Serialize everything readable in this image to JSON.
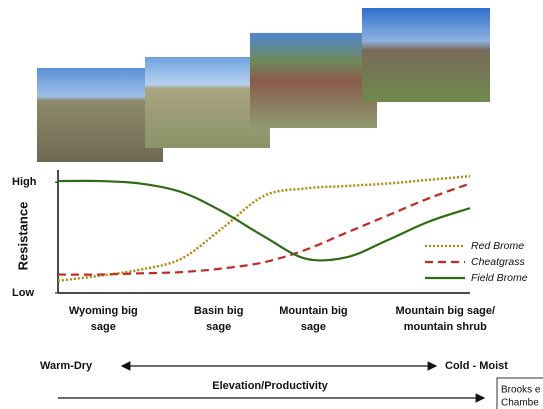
{
  "chart_data": {
    "type": "line",
    "ylabel": "Resistance",
    "ylim": [
      0,
      100
    ],
    "yticks": [
      {
        "value": 90,
        "label": "High"
      },
      {
        "value": 0,
        "label": "Low"
      }
    ],
    "xlim": [
      0,
      100
    ],
    "xticks": [
      {
        "value": 11,
        "label": "Wyoming big sage"
      },
      {
        "value": 39,
        "label": "Basin big sage"
      },
      {
        "value": 62,
        "label": "Mountain big sage"
      },
      {
        "value": 94,
        "label": "Mountain big sage/ mountain shrub"
      }
    ],
    "x": [
      0,
      10,
      20,
      30,
      40,
      50,
      60,
      70,
      80,
      90,
      100
    ],
    "series": [
      {
        "name": "Red Brome",
        "color": "#b8860b",
        "style": "dotted",
        "values": [
          10,
          14,
          19,
          28,
          53,
          79,
          85,
          87,
          89,
          92,
          95
        ]
      },
      {
        "name": "Cheatgrass",
        "color": "#c8281e",
        "style": "dashed",
        "values": [
          15,
          15,
          16,
          17,
          20,
          25,
          35,
          49,
          63,
          77,
          89
        ]
      },
      {
        "name": "Field Brome",
        "color": "#2e6b12",
        "style": "solid",
        "values": [
          91,
          91,
          89,
          82,
          66,
          46,
          28,
          29,
          43,
          58,
          69
        ]
      }
    ],
    "legend": "right",
    "annotations": [
      "Warm-Dry",
      "Cold - Moist",
      "Elevation/Productivity"
    ],
    "citation": [
      "Brooks e",
      "Chambe"
    ]
  }
}
